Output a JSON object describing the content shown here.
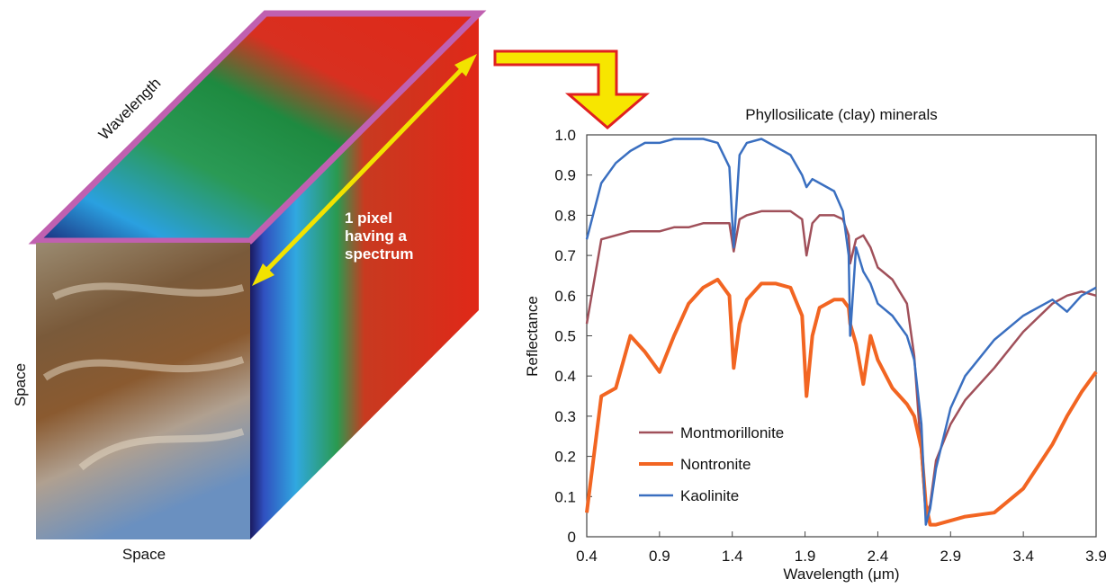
{
  "diagram": {
    "top_label": "Wavelength",
    "left_label": "Space",
    "bottom_label": "Space",
    "pixel_label": [
      "1 pixel",
      "having a",
      "spectrum"
    ]
  },
  "chart_data": {
    "type": "line",
    "title": "Phyllosilicate (clay) minerals",
    "x_label": "Wavelength (μm)",
    "y_label": "Reflectance",
    "x": [
      0.4,
      0.5,
      0.6,
      0.7,
      0.8,
      0.9,
      1.0,
      1.1,
      1.2,
      1.3,
      1.38,
      1.41,
      1.45,
      1.5,
      1.6,
      1.7,
      1.8,
      1.88,
      1.91,
      1.95,
      2.0,
      2.1,
      2.16,
      2.2,
      2.21,
      2.25,
      2.3,
      2.35,
      2.4,
      2.5,
      2.6,
      2.65,
      2.7,
      2.73,
      2.76,
      2.8,
      2.9,
      3.0,
      3.2,
      3.4,
      3.6,
      3.7,
      3.8,
      3.9
    ],
    "series": [
      {
        "name": "Montmorillonite",
        "color": "#a0505a",
        "values": [
          0.53,
          0.74,
          0.75,
          0.76,
          0.76,
          0.76,
          0.77,
          0.77,
          0.78,
          0.78,
          0.78,
          0.71,
          0.79,
          0.8,
          0.81,
          0.81,
          0.81,
          0.79,
          0.7,
          0.78,
          0.8,
          0.8,
          0.79,
          0.75,
          0.68,
          0.74,
          0.75,
          0.72,
          0.67,
          0.64,
          0.58,
          0.45,
          0.2,
          0.05,
          0.08,
          0.19,
          0.28,
          0.34,
          0.42,
          0.51,
          0.58,
          0.6,
          0.61,
          0.6
        ]
      },
      {
        "name": "Nontronite",
        "color": "#f26522",
        "values": [
          0.06,
          0.35,
          0.37,
          0.5,
          0.46,
          0.41,
          0.5,
          0.58,
          0.62,
          0.64,
          0.6,
          0.42,
          0.53,
          0.59,
          0.63,
          0.63,
          0.62,
          0.55,
          0.35,
          0.5,
          0.57,
          0.59,
          0.59,
          0.57,
          0.53,
          0.48,
          0.38,
          0.5,
          0.44,
          0.37,
          0.33,
          0.3,
          0.22,
          0.08,
          0.03,
          0.03,
          0.04,
          0.05,
          0.06,
          0.12,
          0.23,
          0.3,
          0.36,
          0.41
        ]
      },
      {
        "name": "Kaolinite",
        "color": "#3a6fc0",
        "values": [
          0.74,
          0.88,
          0.93,
          0.96,
          0.98,
          0.98,
          0.99,
          0.99,
          0.99,
          0.98,
          0.92,
          0.72,
          0.95,
          0.98,
          0.99,
          0.97,
          0.95,
          0.9,
          0.87,
          0.89,
          0.88,
          0.86,
          0.81,
          0.7,
          0.5,
          0.72,
          0.66,
          0.63,
          0.58,
          0.55,
          0.5,
          0.44,
          0.28,
          0.03,
          0.07,
          0.17,
          0.32,
          0.4,
          0.49,
          0.55,
          0.59,
          0.56,
          0.6,
          0.62
        ]
      }
    ],
    "xlim": [
      0.4,
      3.9
    ],
    "xticks": [
      0.4,
      0.9,
      1.4,
      1.9,
      2.4,
      2.9,
      3.4,
      3.9
    ],
    "ylim": [
      0,
      1
    ],
    "yticks": [
      0,
      0.1,
      0.2,
      0.3,
      0.4,
      0.5,
      0.6,
      0.7,
      0.8,
      0.9,
      {
        "value": 1,
        "label": "1.0"
      }
    ],
    "legend": "lower left"
  }
}
